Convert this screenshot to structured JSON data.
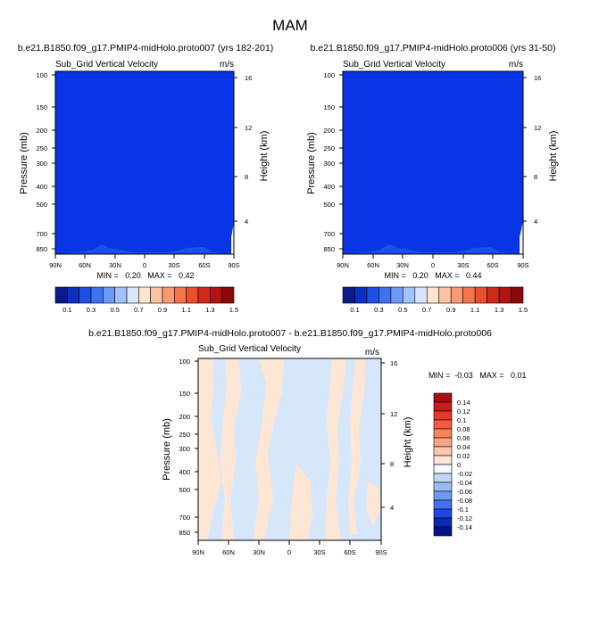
{
  "page_title": "MAM",
  "chart_data": [
    {
      "type": "contour",
      "title": "b.e21.B1850.f09_g17.PMIP4-midHolo.proto007 (yrs 182-201)",
      "variable": "Sub_Grid Vertical Velocity",
      "units": "m/s",
      "ylabel": "Pressure (mb)",
      "ylabel_right": "Height (km)",
      "y_ticks": [
        "100",
        "150",
        "200",
        "250",
        "300",
        "400",
        "500",
        "700",
        "850"
      ],
      "y_ticks_right": [
        "16",
        "12",
        "8",
        "4"
      ],
      "x_ticks": [
        "90N",
        "60N",
        "30N",
        "0",
        "30S",
        "60S",
        "90S"
      ],
      "stats": "MIN =   0.20   MAX =   0.42",
      "colorbar_labels": [
        "0.1",
        "0.3",
        "0.5",
        "0.7",
        "0.9",
        "1.1",
        "1.3",
        "1.5"
      ],
      "colorbar_colors": [
        "#0a1a8c",
        "#0c2fc4",
        "#1d4fe8",
        "#3c72f0",
        "#6d99f5",
        "#a3c2fb",
        "#d6e6fd",
        "#fde4cf",
        "#fcc2a3",
        "#f99a73",
        "#f4744c",
        "#ea4e2c",
        "#d2291c",
        "#b21414",
        "#8a0909"
      ],
      "field": {
        "dominant_color": "#0a35e6",
        "dominant_range": "0.1-0.3"
      }
    },
    {
      "type": "contour",
      "title": "b.e21.B1850.f09_g17.PMIP4-midHolo.proto006 (yrs 31-50)",
      "variable": "Sub_Grid Vertical Velocity",
      "units": "m/s",
      "ylabel": "Pressure (mb)",
      "ylabel_right": "Height (km)",
      "y_ticks": [
        "100",
        "150",
        "200",
        "250",
        "300",
        "400",
        "500",
        "700",
        "850"
      ],
      "y_ticks_right": [
        "16",
        "12",
        "8",
        "4"
      ],
      "x_ticks": [
        "90N",
        "60N",
        "30N",
        "0",
        "30S",
        "60S",
        "90S"
      ],
      "stats": "MIN =   0.20   MAX =   0.44",
      "colorbar_labels": [
        "0.1",
        "0.3",
        "0.5",
        "0.7",
        "0.9",
        "1.1",
        "1.3",
        "1.5"
      ],
      "colorbar_colors": [
        "#0a1a8c",
        "#0c2fc4",
        "#1d4fe8",
        "#3c72f0",
        "#6d99f5",
        "#a3c2fb",
        "#d6e6fd",
        "#fde4cf",
        "#fcc2a3",
        "#f99a73",
        "#f4744c",
        "#ea4e2c",
        "#d2291c",
        "#b21414",
        "#8a0909"
      ],
      "field": {
        "dominant_color": "#0a35e6",
        "dominant_range": "0.1-0.3"
      }
    },
    {
      "type": "contour",
      "title": "b.e21.B1850.f09_g17.PMIP4-midHolo.proto007 - b.e21.B1850.f09_g17.PMIP4-midHolo.proto006",
      "variable": "Sub_Grid Vertical Velocity",
      "units": "m/s",
      "ylabel": "Pressure (mb)",
      "ylabel_right": "Height (km)",
      "y_ticks": [
        "100",
        "150",
        "200",
        "250",
        "300",
        "400",
        "500",
        "700",
        "850"
      ],
      "y_ticks_right": [
        "16",
        "12",
        "8",
        "4"
      ],
      "x_ticks": [
        "90N",
        "60N",
        "30N",
        "0",
        "30S",
        "60S",
        "90S"
      ],
      "stats": "MIN =  -0.03   MAX =   0.01",
      "colorbar_labels": [
        "0.14",
        "0.12",
        "0.1",
        "0.08",
        "0.06",
        "0.04",
        "0.02",
        "0",
        "-0.02",
        "-0.04",
        "-0.06",
        "-0.08",
        "-0.1",
        "-0.12",
        "-0.14"
      ],
      "colorbar_colors": [
        "#a50f15",
        "#c81d1d",
        "#e6382a",
        "#f55a3c",
        "#f7855c",
        "#f9a482",
        "#fcc8ad",
        "#fde6d6",
        "#f5f8ff",
        "#c3d6f7",
        "#9bbcf3",
        "#6f9af0",
        "#4371ee",
        "#1d48e2",
        "#0c27b8",
        "#06128a"
      ],
      "field": {
        "dominant_colors": [
          "#d6e7fb",
          "#fde6d4"
        ],
        "dominant_range": "-0.02-0.02"
      }
    }
  ]
}
